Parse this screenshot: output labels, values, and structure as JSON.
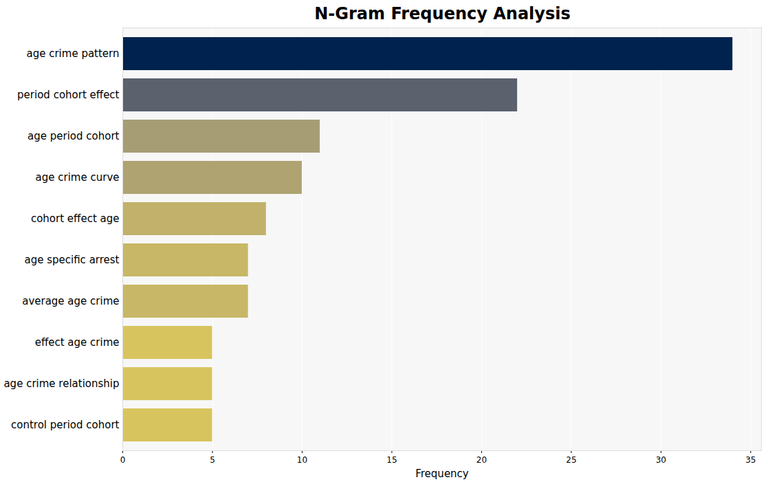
{
  "chart_data": {
    "type": "bar",
    "orientation": "horizontal",
    "title": "N-Gram Frequency Analysis",
    "x_label": "Frequency",
    "categories": [
      "age crime pattern",
      "period cohort effect",
      "age period cohort",
      "age crime curve",
      "cohort effect age",
      "age specific arrest",
      "average age crime",
      "effect age crime",
      "age crime relationship",
      "control period cohort"
    ],
    "values": [
      34,
      22,
      11,
      10,
      8,
      7,
      7,
      5,
      5,
      5
    ],
    "colors": [
      "#00224e",
      "#5c616e",
      "#a69d75",
      "#aea371",
      "#c1b16a",
      "#c8b767",
      "#c8b767",
      "#d8c45f",
      "#d8c45f",
      "#d8c45f"
    ],
    "xlim": [
      0,
      35.6
    ],
    "xticks": [
      0,
      5,
      10,
      15,
      20,
      25,
      30,
      35
    ],
    "grid": true
  }
}
